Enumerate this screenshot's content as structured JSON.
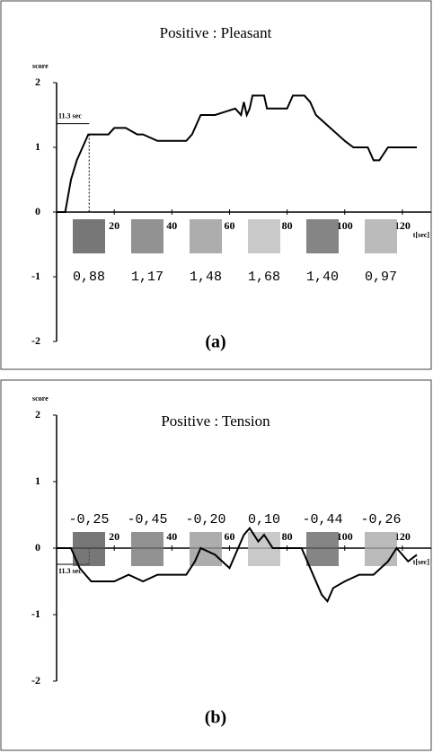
{
  "chart_data": [
    {
      "type": "line",
      "title": "Positive : Pleasant",
      "ylabel": "score",
      "xlabel": "t[sec]",
      "annotation": "11.3 sec",
      "panel_label": "(a)",
      "x": [
        0,
        3,
        5,
        7,
        9,
        11,
        12,
        18,
        20,
        24,
        28,
        30,
        35,
        45,
        47,
        50,
        55,
        62,
        64,
        65,
        66,
        67,
        68,
        70,
        72,
        73,
        74,
        80,
        82,
        86,
        88,
        90,
        95,
        100,
        103,
        108,
        110,
        112,
        115,
        120,
        125
      ],
      "values": [
        0,
        0,
        0.5,
        0.8,
        1.0,
        1.2,
        1.2,
        1.2,
        1.3,
        1.3,
        1.2,
        1.2,
        1.1,
        1.1,
        1.2,
        1.5,
        1.5,
        1.6,
        1.5,
        1.7,
        1.5,
        1.6,
        1.8,
        1.8,
        1.8,
        1.6,
        1.6,
        1.6,
        1.8,
        1.8,
        1.7,
        1.5,
        1.3,
        1.1,
        1.0,
        1.0,
        0.8,
        0.8,
        1.0,
        1.0,
        1.0
      ],
      "color": "#000000",
      "xlim": [
        0,
        130
      ],
      "ylim": [
        -2,
        2
      ],
      "xticks": [
        20,
        40,
        60,
        80,
        100,
        120
      ],
      "yticks": [
        -2,
        -1,
        0,
        1,
        2
      ],
      "image_scores": [
        "0,88",
        "1,17",
        "1,48",
        "1,68",
        "1,40",
        "0,97"
      ]
    },
    {
      "type": "line",
      "title": "Positive : Tension",
      "ylabel": "score",
      "xlabel": "t[sec]",
      "annotation": "11.3 sec",
      "panel_label": "(b)",
      "x": [
        0,
        5,
        8,
        12,
        20,
        25,
        30,
        35,
        45,
        48,
        50,
        55,
        60,
        63,
        65,
        67,
        70,
        72,
        75,
        85,
        88,
        92,
        94,
        96,
        100,
        105,
        110,
        115,
        118,
        122,
        125
      ],
      "values": [
        0,
        0,
        -0.3,
        -0.5,
        -0.5,
        -0.4,
        -0.5,
        -0.4,
        -0.4,
        -0.2,
        0,
        -0.1,
        -0.3,
        0,
        0.2,
        0.3,
        0.1,
        0.2,
        0,
        0,
        -0.3,
        -0.7,
        -0.8,
        -0.6,
        -0.5,
        -0.4,
        -0.4,
        -0.2,
        0,
        -0.2,
        -0.1
      ],
      "color": "#000000",
      "xlim": [
        0,
        130
      ],
      "ylim": [
        -2,
        2
      ],
      "xticks": [
        20,
        40,
        60,
        80,
        100,
        120
      ],
      "yticks": [
        -2,
        -1,
        0,
        1,
        2
      ],
      "image_scores": [
        "-0,25",
        "-0,45",
        "-0,20",
        "0,10",
        "-0,44",
        "-0,26"
      ]
    }
  ]
}
